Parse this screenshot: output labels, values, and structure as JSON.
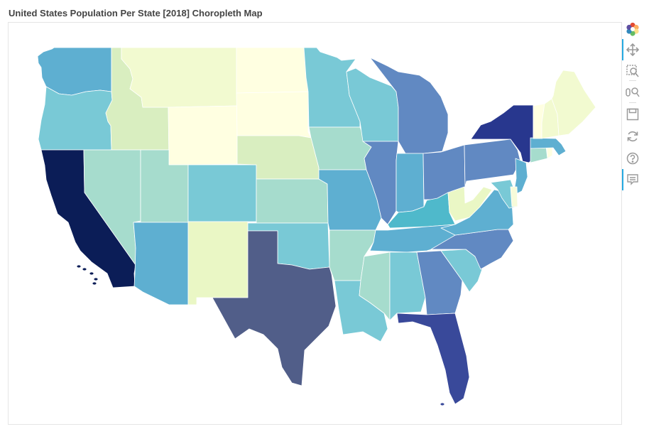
{
  "title": "United States Population Per State [2018] Choropleth Map",
  "map": {
    "projection": "albers-usa (contiguous)",
    "colormap": "YlGnBu",
    "states": [
      {
        "id": "WA",
        "color": "#5eafd1"
      },
      {
        "id": "OR",
        "color": "#79c9d6"
      },
      {
        "id": "CA",
        "color": "#0b1d57"
      },
      {
        "id": "ID",
        "color": "#d9eec0"
      },
      {
        "id": "NV",
        "color": "#a6dccd"
      },
      {
        "id": "MT",
        "color": "#f2fad0"
      },
      {
        "id": "WY",
        "color": "#ffffe1"
      },
      {
        "id": "UT",
        "color": "#a6dccd"
      },
      {
        "id": "AZ",
        "color": "#5eafd1"
      },
      {
        "id": "CO",
        "color": "#79c9d6"
      },
      {
        "id": "NM",
        "color": "#eaf7c5"
      },
      {
        "id": "ND",
        "color": "#ffffe1"
      },
      {
        "id": "SD",
        "color": "#ffffe1"
      },
      {
        "id": "NE",
        "color": "#d9eec0"
      },
      {
        "id": "KS",
        "color": "#a6dccd"
      },
      {
        "id": "OK",
        "color": "#79c9d6"
      },
      {
        "id": "TX",
        "color": "#515e89"
      },
      {
        "id": "MN",
        "color": "#79c9d6"
      },
      {
        "id": "IA",
        "color": "#a6dccd"
      },
      {
        "id": "MO",
        "color": "#5eafd1"
      },
      {
        "id": "AR",
        "color": "#a6dccd"
      },
      {
        "id": "LA",
        "color": "#79c9d6"
      },
      {
        "id": "WI",
        "color": "#79c9d6"
      },
      {
        "id": "IL",
        "color": "#6189c2"
      },
      {
        "id": "MI",
        "color": "#6189c2"
      },
      {
        "id": "IN",
        "color": "#5eafd1"
      },
      {
        "id": "OH",
        "color": "#6189c2"
      },
      {
        "id": "KY",
        "color": "#4fb9cb"
      },
      {
        "id": "TN",
        "color": "#5eafd1"
      },
      {
        "id": "MS",
        "color": "#a6dccd"
      },
      {
        "id": "AL",
        "color": "#79c9d6"
      },
      {
        "id": "GA",
        "color": "#6189c2"
      },
      {
        "id": "FL",
        "color": "#39499a"
      },
      {
        "id": "SC",
        "color": "#79c9d6"
      },
      {
        "id": "NC",
        "color": "#6189c2"
      },
      {
        "id": "VA",
        "color": "#5eafd1"
      },
      {
        "id": "WV",
        "color": "#eaf7c5"
      },
      {
        "id": "PA",
        "color": "#6189c2"
      },
      {
        "id": "NY",
        "color": "#28378e"
      },
      {
        "id": "NJ",
        "color": "#5eafd1"
      },
      {
        "id": "MD",
        "color": "#79c9d6"
      },
      {
        "id": "DE",
        "color": "#f7fbda"
      },
      {
        "id": "CT",
        "color": "#a6dccd"
      },
      {
        "id": "RI",
        "color": "#ffffe1"
      },
      {
        "id": "MA",
        "color": "#5eafd1"
      },
      {
        "id": "VT",
        "color": "#ffffe1"
      },
      {
        "id": "NH",
        "color": "#f2fad0"
      },
      {
        "id": "ME",
        "color": "#f2fad0"
      }
    ]
  },
  "toolbar": {
    "tools": [
      "bokeh-logo",
      "pan",
      "box-zoom",
      "wheel-zoom",
      "save",
      "reset",
      "help",
      "hover"
    ]
  }
}
